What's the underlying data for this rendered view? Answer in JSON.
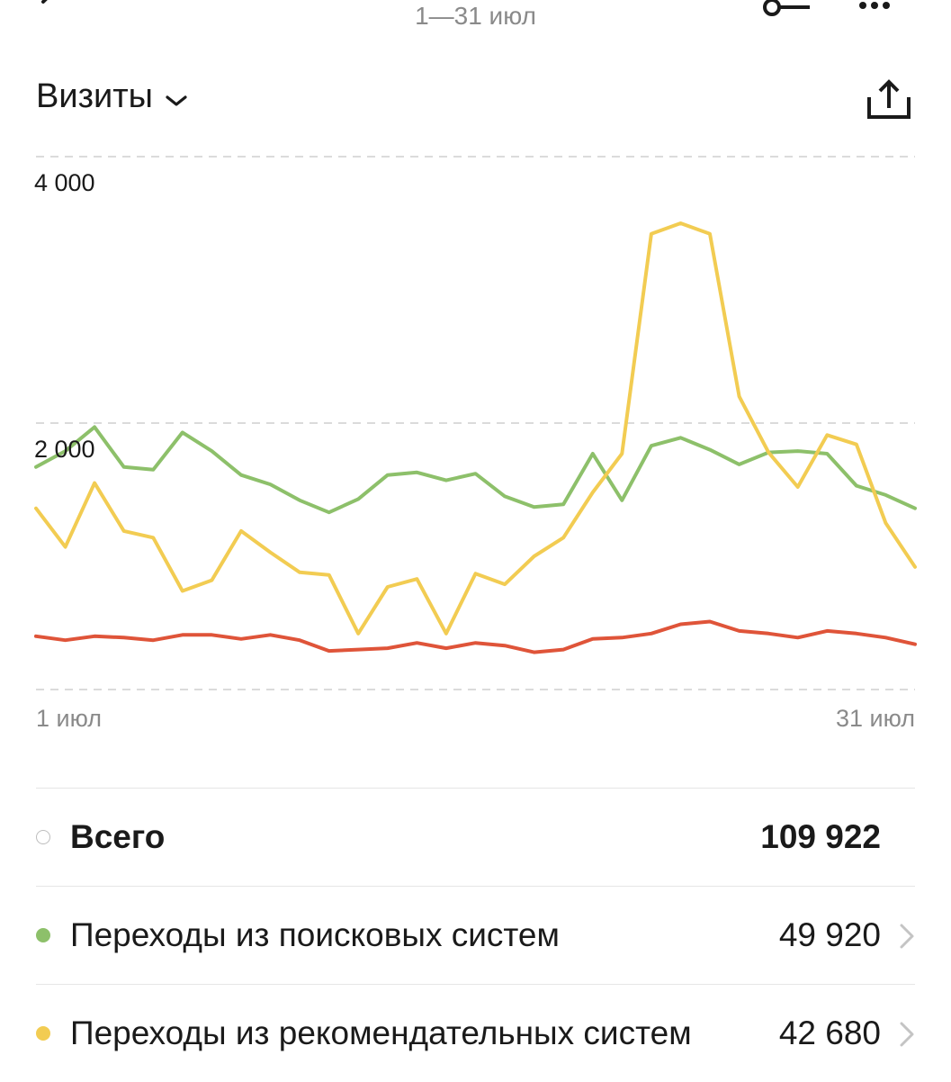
{
  "header": {
    "date_range": "1—31 июл",
    "icons": {
      "back": "back-chevron-icon",
      "filter": "filter-slider-icon",
      "more": "more-dots-icon",
      "export": "share-export-icon"
    }
  },
  "metric": {
    "title": "Визиты",
    "icon": "chevron-down-icon"
  },
  "chart_data": {
    "type": "line",
    "x": [
      "1 июл",
      "2 июл",
      "3 июл",
      "4 июл",
      "5 июл",
      "6 июл",
      "7 июл",
      "8 июл",
      "9 июл",
      "10 июл",
      "11 июл",
      "12 июл",
      "13 июл",
      "14 июл",
      "15 июл",
      "16 июл",
      "17 июл",
      "18 июл",
      "19 июл",
      "20 июл",
      "21 июл",
      "22 июл",
      "23 июл",
      "24 июл",
      "25 июл",
      "26 июл",
      "27 июл",
      "28 июл",
      "29 июл",
      "30 июл",
      "31 июл"
    ],
    "x_tick_labels": [
      "1 июл",
      "31 июл"
    ],
    "y_ticks": [
      {
        "value": 4000,
        "label": "4 000"
      },
      {
        "value": 2000,
        "label": "2 000"
      }
    ],
    "ylim": [
      0,
      4000
    ],
    "grid": true,
    "series": [
      {
        "name": "Переходы из поисковых систем",
        "color": "#8dc06a",
        "values": [
          1670,
          1790,
          1970,
          1670,
          1650,
          1930,
          1790,
          1610,
          1540,
          1420,
          1330,
          1430,
          1610,
          1630,
          1570,
          1620,
          1450,
          1370,
          1390,
          1770,
          1420,
          1830,
          1890,
          1800,
          1690,
          1780,
          1790,
          1770,
          1530,
          1460,
          1360
        ]
      },
      {
        "name": "Переходы из рекомендательных систем",
        "color": "#f2cc52",
        "values": [
          1360,
          1070,
          1550,
          1190,
          1140,
          740,
          820,
          1190,
          1030,
          880,
          860,
          420,
          770,
          830,
          420,
          870,
          790,
          1000,
          1140,
          1480,
          1770,
          3420,
          3500,
          3420,
          2200,
          1780,
          1520,
          1910,
          1840,
          1250,
          920
        ]
      },
      {
        "name": "",
        "color": "#df5439",
        "values": [
          400,
          370,
          400,
          390,
          370,
          410,
          410,
          380,
          410,
          370,
          290,
          300,
          310,
          350,
          310,
          350,
          330,
          280,
          300,
          380,
          390,
          420,
          490,
          510,
          440,
          420,
          390,
          440,
          420,
          390,
          340
        ]
      }
    ]
  },
  "legend": {
    "total": {
      "label": "Всего",
      "value": "109 922"
    },
    "items": [
      {
        "label": "Переходы из поисковых систем",
        "value": "49 920",
        "color": "#8dc06a"
      },
      {
        "label": "Переходы из рекомендательных систем",
        "value": "42 680",
        "color": "#f2cc52"
      }
    ]
  }
}
